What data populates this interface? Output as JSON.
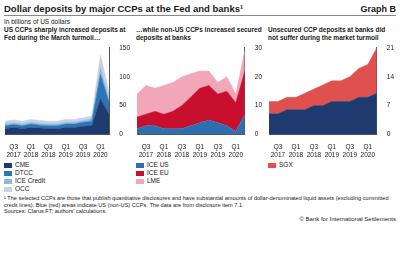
{
  "title": "Dollar deposits by major CCPs at the Fed and banks¹",
  "graph_label": "Graph B",
  "footnote": "¹ The selected CCPs are those that publish quantitative disclosures and have substantial amounts of dollar-denominated liquid assets (excluding committed credit lines). Blue (red) areas indicate US (non-US) CCPs. The data are from disclosure item 7.1.",
  "sources": "Sources: Clarus FT; authors' calculations.",
  "footer": "© Bank for International Settlements",
  "chart_data": [
    {
      "type": "area",
      "stacked": true,
      "grid": false,
      "y_label": "In billions of US dollars",
      "subtitle": "US CCPs sharply increased deposits at Fed during the March turmoil…",
      "categories": [
        null,
        "Q3 2017",
        null,
        "Q1 2018",
        null,
        "Q3 2018",
        null,
        "Q1 2019",
        null,
        "Q3 2019",
        null,
        "Q1 2020",
        null
      ],
      "ylim": [
        0,
        150
      ],
      "yticks": [
        0,
        50,
        100,
        150
      ],
      "series": [
        {
          "name": "CME",
          "color": "#1f3a6e",
          "values": [
            10,
            12,
            10,
            12,
            11,
            10,
            10,
            12,
            12,
            14,
            15,
            62,
            35
          ]
        },
        {
          "name": "DTCC",
          "color": "#2e75b6",
          "values": [
            5,
            5,
            5,
            6,
            5,
            5,
            5,
            6,
            6,
            7,
            8,
            42,
            20
          ]
        },
        {
          "name": "ICE Credit",
          "color": "#8fb8e0",
          "values": [
            3,
            3,
            3,
            3,
            3,
            3,
            3,
            3,
            3,
            3,
            4,
            12,
            6
          ]
        },
        {
          "name": "OCC",
          "color": "#c7d3e0",
          "values": [
            5,
            5,
            5,
            5,
            5,
            5,
            5,
            5,
            5,
            5,
            5,
            22,
            12
          ]
        }
      ]
    },
    {
      "type": "area",
      "stacked": true,
      "grid": false,
      "subtitle": "…while non-US CCPs increased secured deposits at banks",
      "categories": [
        null,
        "Q3 2017",
        null,
        "Q1 2018",
        null,
        "Q3 2018",
        null,
        "Q1 2019",
        null,
        "Q3 2019",
        null,
        "Q1 2020",
        null
      ],
      "ylim": [
        0,
        30
      ],
      "yticks": [
        0,
        10,
        20,
        30
      ],
      "series": [
        {
          "name": "ICE US",
          "color": "#2f6fb0",
          "values": [
            2,
            3,
            3,
            2,
            2,
            2,
            3,
            4,
            5,
            4,
            3,
            1,
            7
          ]
        },
        {
          "name": "ICE EU",
          "color": "#c8102e",
          "values": [
            4,
            4,
            5,
            5,
            6,
            8,
            10,
            12,
            12,
            10,
            12,
            10,
            15
          ]
        },
        {
          "name": "LME",
          "color": "#f2a7b8",
          "values": [
            8,
            10,
            8,
            10,
            10,
            10,
            8,
            6,
            5,
            4,
            5,
            3,
            7
          ]
        }
      ]
    },
    {
      "type": "area",
      "stacked": true,
      "grid": false,
      "subtitle": "Unsecured CCP deposits at banks did not suffer during the market turmoil",
      "categories": [
        null,
        "Q3 2017",
        null,
        "Q1 2018",
        null,
        "Q3 2018",
        null,
        "Q1 2019",
        null,
        "Q3 2019",
        null,
        "Q1 2020",
        null
      ],
      "ylim": [
        0,
        21
      ],
      "yticks": [
        0,
        7,
        14,
        21
      ],
      "series": [
        {
          "name": "CME",
          "color": "#1f3a6e",
          "values": [
            5,
            5,
            6,
            6,
            6,
            7,
            7,
            8,
            8,
            8,
            9,
            9,
            10
          ]
        },
        {
          "name": "SGX",
          "color": "#e0504f",
          "values": [
            3,
            3,
            3,
            3,
            4,
            4,
            5,
            5,
            5,
            6,
            7,
            8,
            11
          ]
        }
      ]
    }
  ]
}
